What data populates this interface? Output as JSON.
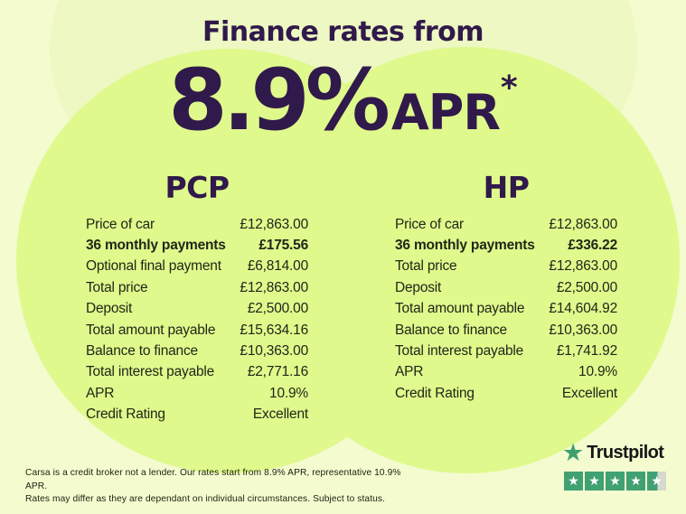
{
  "header": {
    "title": "Finance rates from",
    "rate_value": "8.9%",
    "rate_unit": "APR",
    "rate_footnote_marker": "*"
  },
  "finance_options": {
    "pcp": {
      "heading": "PCP",
      "rows": [
        {
          "label": "Price of car",
          "value": "£12,863.00"
        },
        {
          "label": "36 monthly payments",
          "value": "£175.56"
        },
        {
          "label": "Optional final payment",
          "value": "£6,814.00"
        },
        {
          "label": "Total price",
          "value": "£12,863.00"
        },
        {
          "label": "Deposit",
          "value": "£2,500.00"
        },
        {
          "label": "Total amount payable",
          "value": "£15,634.16"
        },
        {
          "label": "Balance to finance",
          "value": "£10,363.00"
        },
        {
          "label": "Total interest payable",
          "value": "£2,771.16"
        },
        {
          "label": "APR",
          "value": "10.9%"
        },
        {
          "label": "Credit Rating",
          "value": "Excellent"
        }
      ]
    },
    "hp": {
      "heading": "HP",
      "rows": [
        {
          "label": "Price of car",
          "value": "£12,863.00"
        },
        {
          "label": "36 monthly payments",
          "value": "£336.22"
        },
        {
          "label": "Total price",
          "value": "£12,863.00"
        },
        {
          "label": "Deposit",
          "value": "£2,500.00"
        },
        {
          "label": "Total amount payable",
          "value": "£14,604.92"
        },
        {
          "label": "Balance to finance",
          "value": "£10,363.00"
        },
        {
          "label": "Total interest payable",
          "value": "£1,741.92"
        },
        {
          "label": "APR",
          "value": "10.9%"
        },
        {
          "label": "Credit Rating",
          "value": "Excellent"
        }
      ]
    }
  },
  "trustpilot": {
    "brand": "Trustpilot",
    "rating_out_of_5": 4.5,
    "star_glyph": "★"
  },
  "disclaimer": {
    "line1": "Carsa is a credit broker not a lender. Our rates start from 8.9% APR, representative 10.9% APR.",
    "line2": "Rates may differ as they are dependant on individual circumstances. Subject to status."
  },
  "colors": {
    "background": "#F3FBCF",
    "circle_lime": "#DFF98C",
    "heading_purple": "#30194B",
    "body_text": "#212619",
    "trustpilot_green": "#41A173",
    "star_empty_gray": "#D5D9D0"
  }
}
